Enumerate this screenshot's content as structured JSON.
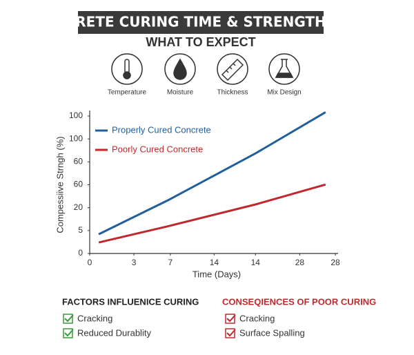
{
  "title": "CONCRETE CURING TIME & STRENGTH GAIN",
  "subtitle": "WHAT TO EXPECT",
  "icons": [
    "Temperature",
    "Moisture",
    "Thickness",
    "Mix Design"
  ],
  "chart_data": {
    "type": "line",
    "x_label": "Time (Days)",
    "y_label": "Compessiive Strngh (%)",
    "x": [
      0.22,
      1.94,
      4.05,
      5.76
    ],
    "series": [
      {
        "name": "Properly Cured Concrete",
        "color": "#1f5f9e",
        "values": [
          0.84,
          2.35,
          4.37,
          6.17
        ]
      },
      {
        "name": "Poorly Cured Concrete",
        "color": "#c0282d",
        "values": [
          0.48,
          1.2,
          2.14,
          3.01
        ]
      }
    ],
    "xlim": [
      0,
      6
    ],
    "xticks": [
      {
        "value": 0,
        "label": "0"
      },
      {
        "value": 1.08,
        "label": "3"
      },
      {
        "value": 1.97,
        "label": "7"
      },
      {
        "value": 3.04,
        "label": "14"
      },
      {
        "value": 4.05,
        "label": "14"
      },
      {
        "value": 5.13,
        "label": "28"
      },
      {
        "value": 6,
        "label": "28"
      }
    ],
    "ylim": [
      0,
      6
    ],
    "yticks": [
      {
        "value": 0,
        "label": "0"
      },
      {
        "value": 1,
        "label": "5"
      },
      {
        "value": 2,
        "label": "20"
      },
      {
        "value": 3,
        "label": "60"
      },
      {
        "value": 4,
        "label": "60"
      },
      {
        "value": 5,
        "label": "100"
      },
      {
        "value": 6,
        "label": "100"
      }
    ],
    "grid": false,
    "legend": "upper left"
  },
  "factors": {
    "heading": "FACTORS INFLUENICE CURING",
    "items": [
      "Cracking",
      "Reduced Durablity"
    ]
  },
  "consequences": {
    "heading": "CONSEQIENCES OF POOR CURING",
    "items": [
      "Cracking",
      "Surface Spalling"
    ]
  }
}
